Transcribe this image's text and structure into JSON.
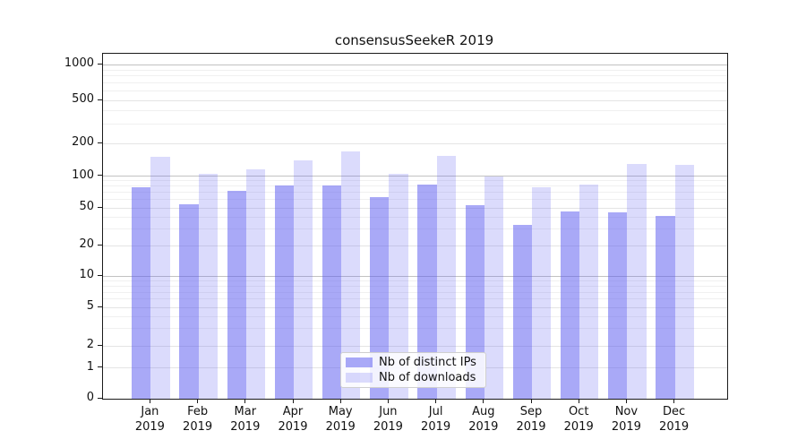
{
  "figure": {
    "title": "consensusSeekeR 2019",
    "background": "#ffffff"
  },
  "axes": {
    "y_tick_labels": [
      "1000",
      "500",
      "200",
      "100",
      "50",
      "20",
      "10",
      "5",
      "2",
      "1",
      "0"
    ],
    "x_tick_labels": [
      "Jan 2019",
      "Feb 2019",
      "Mar 2019",
      "Apr 2019",
      "May 2019",
      "Jun 2019",
      "Jul 2019",
      "Aug 2019",
      "Sep 2019",
      "Oct 2019",
      "Nov 2019",
      "Dec 2019"
    ]
  },
  "legend": {
    "items": [
      {
        "label": "Nb of distinct IPs",
        "swatch_hex": "#aaaaf7"
      },
      {
        "label": "Nb of downloads",
        "swatch_hex": "#dbdbfb"
      }
    ]
  },
  "colors": {
    "bar_base": "#5a5af0",
    "bar_dark_alpha": 0.52,
    "bar_light_alpha": 0.22,
    "bar_dark_effective": "#aaaaf7",
    "bar_light_effective": "#dbdbfb",
    "grid_major": "#c2c2c2",
    "grid_medium": "#e4e4e4",
    "grid_minor": "#f0f0f0",
    "spine": "#1a1a1a",
    "text": "#111111"
  },
  "chart_data": {
    "type": "bar",
    "title": "consensusSeekeR 2019",
    "categories": [
      "Jan 2019",
      "Feb 2019",
      "Mar 2019",
      "Apr 2019",
      "May 2019",
      "Jun 2019",
      "Jul 2019",
      "Aug 2019",
      "Sep 2019",
      "Oct 2019",
      "Nov 2019",
      "Dec 2019"
    ],
    "series": [
      {
        "name": "Nb of distinct IPs",
        "values": [
          79,
          54,
          72,
          82,
          82,
          63,
          83,
          53,
          33,
          46,
          45,
          41
        ]
      },
      {
        "name": "Nb of downloads",
        "values": [
          150,
          104,
          116,
          140,
          170,
          105,
          152,
          100,
          78,
          83,
          130,
          126
        ]
      }
    ],
    "yscale": "log above 1 with linear segment 0-1 (symlog-like)",
    "yticks": [
      0,
      1,
      2,
      5,
      10,
      20,
      50,
      100,
      200,
      500,
      1000
    ],
    "ylim": [
      0,
      1300
    ],
    "grid": true,
    "legend_position": "inside lower center"
  }
}
